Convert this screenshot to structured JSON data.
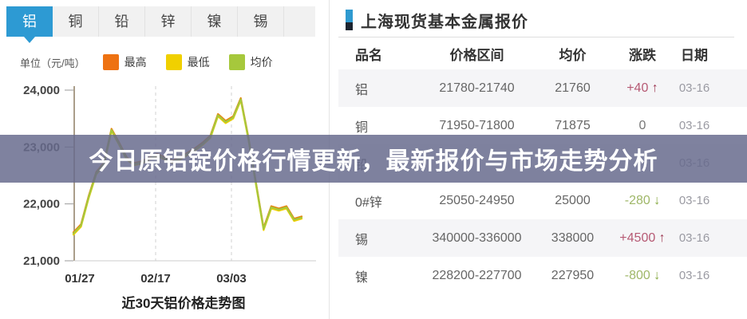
{
  "tabs": {
    "items": [
      {
        "label": "铝",
        "active": true
      },
      {
        "label": "铜",
        "active": false
      },
      {
        "label": "铅",
        "active": false
      },
      {
        "label": "锌",
        "active": false
      },
      {
        "label": "镍",
        "active": false
      },
      {
        "label": "锡",
        "active": false
      }
    ]
  },
  "unit_label": "单位（元/吨）",
  "legend": {
    "items": [
      {
        "label": "最高",
        "color": "#ee7212"
      },
      {
        "label": "最低",
        "color": "#f0d000"
      },
      {
        "label": "均价",
        "color": "#a6c83c"
      }
    ]
  },
  "chart_data": {
    "type": "line",
    "title": "近30天铝价格走势图",
    "ylabel": "元/吨",
    "ylim": [
      21000,
      24000
    ],
    "grid": true,
    "yticks": [
      {
        "label": "24,000",
        "value": 24000
      },
      {
        "label": "23,000",
        "value": 23000
      },
      {
        "label": "22,000",
        "value": 22000
      },
      {
        "label": "21,000",
        "value": 21000
      }
    ],
    "xticks": [
      {
        "label": "01/27",
        "x": 100,
        "grid": false
      },
      {
        "label": "02/17",
        "x": 195,
        "grid": true
      },
      {
        "label": "03/03",
        "x": 290,
        "grid": true
      }
    ],
    "series": [
      {
        "name": "最高",
        "color": "#e8820c",
        "values": [
          21500,
          21640,
          22140,
          22560,
          22720,
          23320,
          23080,
          22820,
          22720,
          22750,
          22820,
          22880,
          22820,
          22760,
          22820,
          22900,
          22980,
          23080,
          23200,
          23580,
          23460,
          23540,
          23860,
          23170,
          22370,
          21580,
          21960,
          21920,
          21960,
          21740,
          21780
        ]
      },
      {
        "name": "最低",
        "color": "#f0d000",
        "values": [
          21460,
          21600,
          22100,
          22520,
          22680,
          23280,
          23040,
          22780,
          22680,
          22710,
          22780,
          22840,
          22780,
          22720,
          22780,
          22860,
          22940,
          23040,
          23160,
          23540,
          23420,
          23500,
          23820,
          23130,
          22330,
          21540,
          21920,
          21880,
          21920,
          21700,
          21740
        ]
      },
      {
        "name": "均价",
        "color": "#a6c83c",
        "values": [
          21480,
          21620,
          22120,
          22540,
          22700,
          23300,
          23060,
          22800,
          22700,
          22730,
          22800,
          22860,
          22800,
          22740,
          22800,
          22880,
          22960,
          23060,
          23180,
          23560,
          23440,
          23520,
          23840,
          23150,
          22350,
          21560,
          21940,
          21900,
          21940,
          21720,
          21760
        ]
      }
    ]
  },
  "overlay": {
    "headline": "今日原铝锭价格行情更新，最新报价与市场走势分析"
  },
  "quote_panel": {
    "title": "上海现货基本金属报价",
    "columns": [
      "品名",
      "价格区间",
      "均价",
      "涨跌",
      "日期"
    ],
    "rows": [
      {
        "name": "铝",
        "range": "21780-21740",
        "avg": "21760",
        "change": "+40",
        "arrow": "↑",
        "dir": "up",
        "date": "03-16"
      },
      {
        "name": "铜",
        "range": "71950-71800",
        "avg": "71875",
        "change": "0",
        "arrow": "",
        "dir": "zero",
        "date": "03-16"
      },
      {
        "name": "铅",
        "range": "",
        "avg": "",
        "change": "",
        "arrow": "",
        "dir": "",
        "date": "03-16"
      },
      {
        "name": "0#锌",
        "range": "25050-24950",
        "avg": "25000",
        "change": "-280",
        "arrow": "↓",
        "dir": "down",
        "date": "03-16"
      },
      {
        "name": "锡",
        "range": "340000-336000",
        "avg": "338000",
        "change": "+4500",
        "arrow": "↑",
        "dir": "up",
        "date": "03-16"
      },
      {
        "name": "镍",
        "range": "228200-227700",
        "avg": "227950",
        "change": "-800",
        "arrow": "↓",
        "dir": "down",
        "date": "03-16"
      }
    ]
  }
}
